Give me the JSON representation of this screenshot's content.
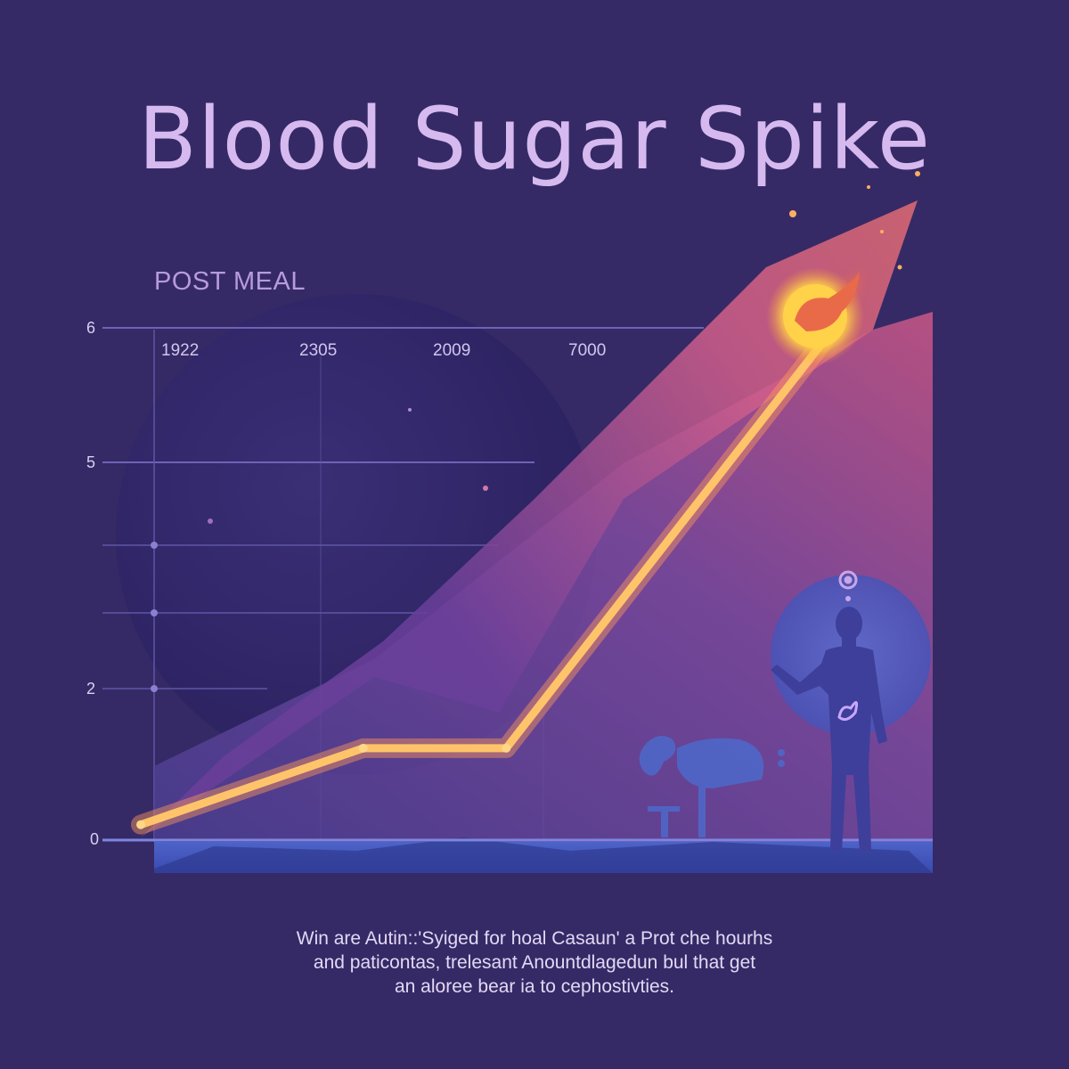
{
  "title": "Blood Sugar Spike",
  "subtitle": "POST MEAL",
  "caption": [
    "Win are Autin::'Syiged for hoal Casaun' a Prot che hourhs",
    "and paticontas, trelesant Anountdlagedun bul that get",
    "an aloree bear ia to cephostivties."
  ],
  "colors": {
    "background": "#352a66",
    "title": "#d6b9ee",
    "line": "#ffc46a",
    "area_start": "#f08a5a",
    "area_end": "#5a4aa8",
    "gridline": "#6e63b3",
    "figure": "#3e3f9a"
  },
  "icons": [
    "body-silhouette-icon",
    "stomach-icon",
    "gear-icon",
    "glucose-burst-icon"
  ],
  "chart_data": {
    "type": "line",
    "title": "Blood Sugar Spike",
    "subtitle": "POST MEAL",
    "x_tick_labels": [
      "1922",
      "2305",
      "2009",
      "7000"
    ],
    "y_ticks": [
      0,
      2,
      5,
      6
    ],
    "ylim": [
      0,
      6
    ],
    "grid": true,
    "series": [
      {
        "values": [
          {
            "x": 0.0,
            "y": 0.15
          },
          {
            "x": 0.28,
            "y": 1.05
          },
          {
            "x": 0.46,
            "y": 1.05
          },
          {
            "x": 0.86,
            "y": 5.85
          }
        ]
      }
    ]
  }
}
